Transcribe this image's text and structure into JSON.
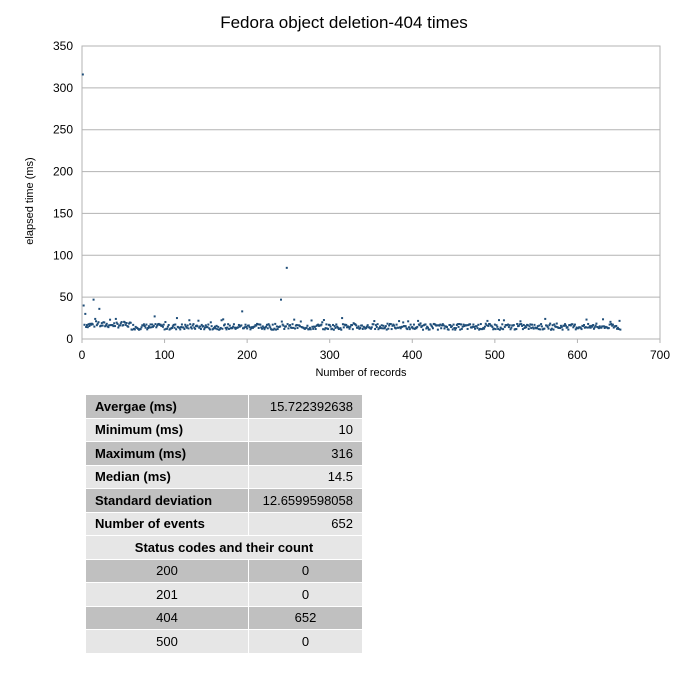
{
  "chart_data": {
    "type": "scatter",
    "title": "Fedora object deletion-404 times",
    "xlabel": "Number of records",
    "ylabel": "elapsed time (ms)",
    "xlim": [
      0,
      700
    ],
    "ylim": [
      0,
      350
    ],
    "xticks": [
      0,
      100,
      200,
      300,
      400,
      500,
      600,
      700
    ],
    "yticks": [
      0,
      50,
      100,
      150,
      200,
      250,
      300,
      350
    ],
    "grid": "horizontal",
    "legend": "none",
    "point_color": "#1f4e79",
    "baseline_count": 652,
    "baseline_range_ms": [
      10,
      24
    ],
    "outliers": [
      {
        "x": 1,
        "y": 316
      },
      {
        "x": 2,
        "y": 40
      },
      {
        "x": 4,
        "y": 30
      },
      {
        "x": 14,
        "y": 47
      },
      {
        "x": 21,
        "y": 36
      },
      {
        "x": 88,
        "y": 27
      },
      {
        "x": 115,
        "y": 25
      },
      {
        "x": 194,
        "y": 33
      },
      {
        "x": 241,
        "y": 47
      },
      {
        "x": 248,
        "y": 85
      },
      {
        "x": 315,
        "y": 25
      }
    ]
  },
  "stats": {
    "rows": [
      {
        "label": "Avergae (ms)",
        "value": "15.722392638"
      },
      {
        "label": "Minimum (ms)",
        "value": "10"
      },
      {
        "label": "Maximum (ms)",
        "value": "316"
      },
      {
        "label": "Median (ms)",
        "value": "14.5"
      },
      {
        "label": "Standard deviation",
        "value": "12.6599598058"
      },
      {
        "label": "Number of events",
        "value": "652"
      }
    ],
    "section_header": "Status codes and their count",
    "status_codes": [
      {
        "code": "200",
        "count": "0"
      },
      {
        "code": "201",
        "count": "0"
      },
      {
        "code": "404",
        "count": "652"
      },
      {
        "code": "500",
        "count": "0"
      }
    ]
  }
}
